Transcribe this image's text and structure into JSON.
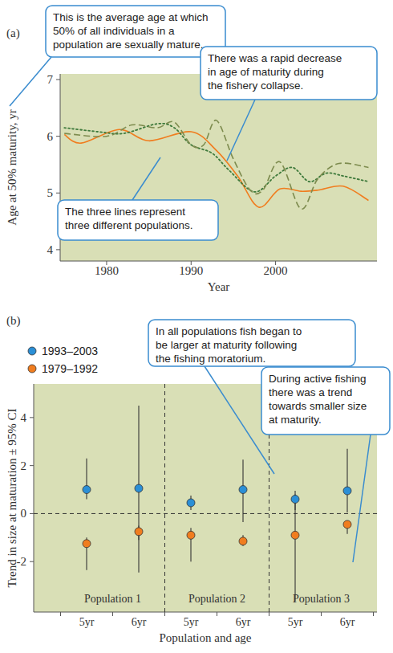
{
  "chart_data": [
    {
      "type": "line",
      "label": "(a)",
      "xlabel": "Year",
      "ylabel": "Age at 50% maturity, yr",
      "xlim": [
        1974.5,
        2012
      ],
      "xticks": [
        1980,
        1990,
        2000
      ],
      "ylim": [
        3.8,
        7.1
      ],
      "yticks": [
        4,
        5,
        6,
        7
      ],
      "grid": false,
      "series": [
        {
          "color": "#f07d1f",
          "line_style": "solid",
          "x": [
            1975,
            1977,
            1981.5,
            1985,
            1990,
            1993,
            1995.5,
            1998,
            2000.5,
            2003,
            2005,
            2008,
            2011
          ],
          "values": [
            6.03,
            5.88,
            6.12,
            5.92,
            6.08,
            5.75,
            5.3,
            4.75,
            5.07,
            5.03,
            5.05,
            5.12,
            4.87
          ]
        },
        {
          "color": "#3f7a3c",
          "line_style": "dotted",
          "x": [
            1975,
            1979,
            1982,
            1986,
            1988,
            1990,
            1992.5,
            1994.5,
            1997.5,
            2000,
            2002,
            2004,
            2006,
            2008,
            2011
          ],
          "values": [
            6.15,
            6.08,
            6.05,
            6.22,
            6.15,
            5.85,
            5.7,
            5.4,
            5.02,
            5.3,
            5.45,
            5.2,
            5.35,
            5.3,
            5.2
          ]
        },
        {
          "color": "#7d8b4e",
          "line_style": "dashed",
          "x": [
            1975,
            1980,
            1983,
            1986,
            1988,
            1990,
            1991.5,
            1993,
            1995,
            1997,
            1998.5,
            2000.5,
            2003,
            2005,
            2007.5,
            2011
          ],
          "values": [
            6.05,
            6.0,
            6.2,
            6.15,
            6.25,
            5.85,
            5.85,
            6.28,
            5.6,
            5.05,
            5.05,
            5.55,
            4.72,
            5.25,
            5.52,
            5.45
          ]
        }
      ],
      "annotations": [
        {
          "lines": [
            "This is the average age at which",
            "50% of all individuals in a",
            "population are sexually mature."
          ]
        },
        {
          "lines": [
            "There was a rapid decrease",
            "in age of maturity during",
            "the fishery collapse."
          ]
        },
        {
          "lines": [
            "The three lines represent",
            "three different populations."
          ]
        }
      ]
    },
    {
      "type": "errorbar",
      "label": "(b)",
      "xlabel": "Population and age",
      "ylabel": "Trend in size at maturation ± 95% CI",
      "categories": [
        "5yr",
        "6yr",
        "5yr",
        "6yr",
        "5yr",
        "6yr"
      ],
      "group_labels": [
        "Population 1",
        "Population 2",
        "Population 3"
      ],
      "ylim": [
        -4.1,
        5.4
      ],
      "yticks": [
        -2,
        0,
        2,
        4
      ],
      "hlines": [
        0
      ],
      "grid": false,
      "legend": "top-left",
      "series": [
        {
          "name": "1993–2003",
          "color": "#2b8fd6",
          "marker": "circle",
          "values": [
            1.0,
            1.05,
            0.45,
            1.0,
            0.6,
            0.95
          ],
          "ci_low": [
            0.6,
            -2.45,
            0.15,
            -0.35,
            0.15,
            0.05
          ],
          "ci_high": [
            2.3,
            4.5,
            0.75,
            2.25,
            0.95,
            2.7
          ]
        },
        {
          "name": "1979–1992",
          "color": "#f07d1f",
          "marker": "circle",
          "values": [
            -1.25,
            -0.75,
            -0.9,
            -1.15,
            -0.9,
            -0.45
          ],
          "ci_low": [
            -2.35,
            -1.1,
            -2.0,
            -1.35,
            -3.65,
            -0.85
          ],
          "ci_high": [
            -1.0,
            -0.5,
            -0.6,
            -0.9,
            0.8,
            -0.3
          ]
        }
      ],
      "annotations": [
        {
          "lines": [
            "In all populations fish began to",
            "be larger at maturity following",
            "the fishing moratorium."
          ]
        },
        {
          "lines": [
            "During active fishing",
            "there was a trend",
            "towards smaller size",
            "at maturity."
          ]
        }
      ]
    }
  ]
}
